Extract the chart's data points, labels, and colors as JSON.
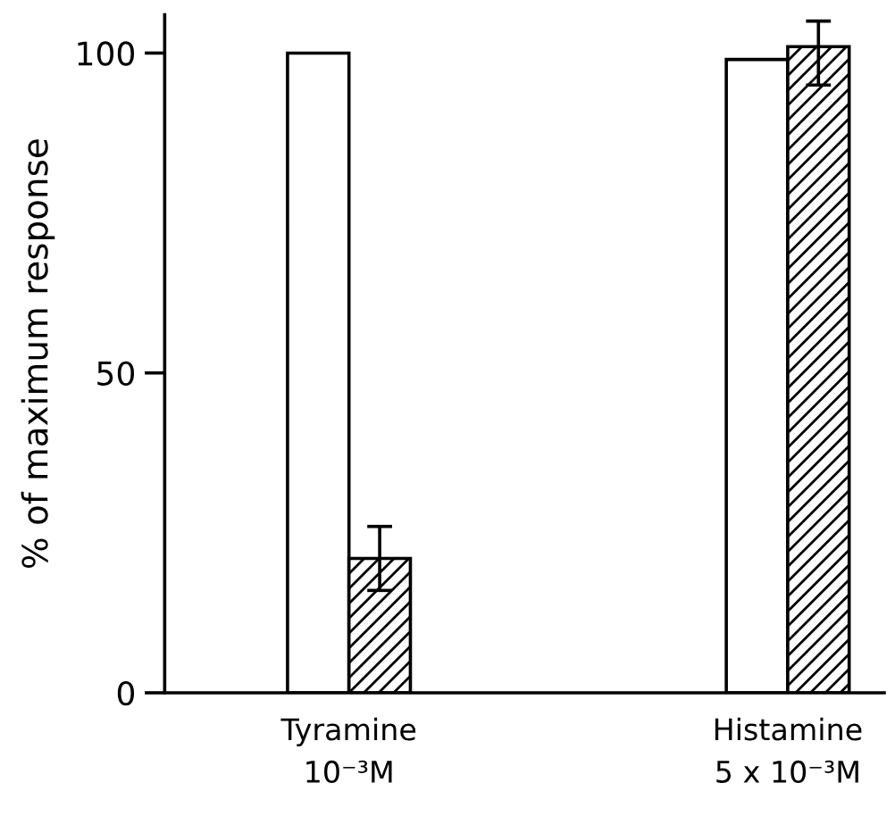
{
  "chart_data": {
    "type": "bar",
    "ylabel": "% of maximum response",
    "categories": [
      "Tyramine\n10⁻³M",
      "Histamine\n5 x 10⁻³M"
    ],
    "series": [
      {
        "color": "#ffffff",
        "values": [
          100,
          99
        ]
      },
      {
        "color": "#000000",
        "values": [
          21,
          101
        ],
        "errors": [
          [
            16,
            26
          ],
          [
            95,
            105
          ]
        ]
      }
    ],
    "ylim": [
      0,
      106
    ],
    "yticks": [
      0,
      50,
      100
    ],
    "grid": false,
    "legend": false
  }
}
